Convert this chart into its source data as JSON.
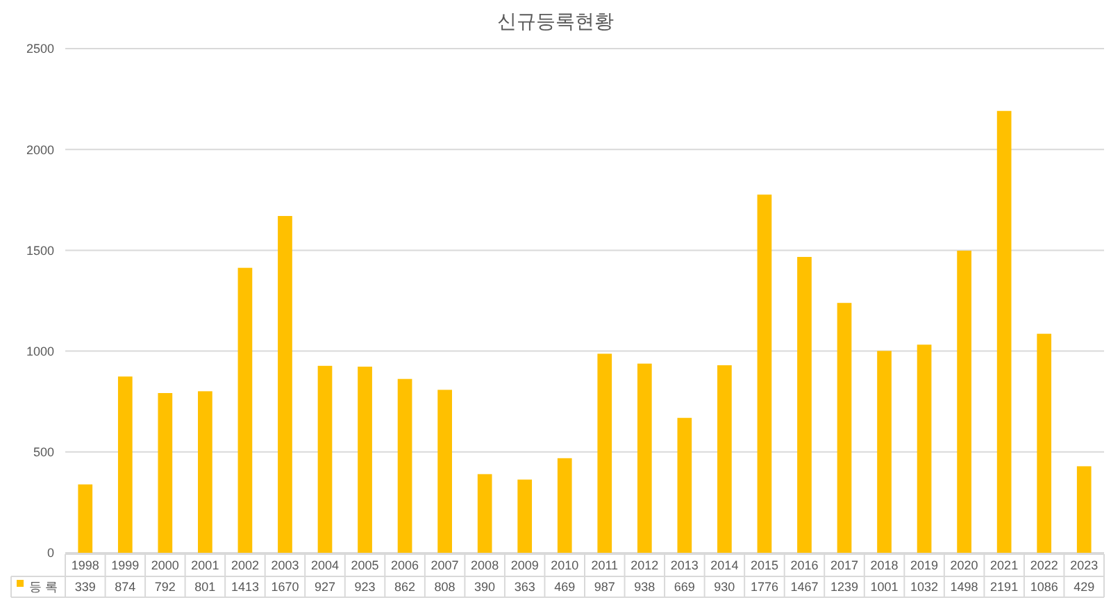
{
  "chart_data": {
    "type": "bar",
    "title": "신규등록현황",
    "categories": [
      "1998",
      "1999",
      "2000",
      "2001",
      "2002",
      "2003",
      "2004",
      "2005",
      "2006",
      "2007",
      "2008",
      "2009",
      "2010",
      "2011",
      "2012",
      "2013",
      "2014",
      "2015",
      "2016",
      "2017",
      "2018",
      "2019",
      "2020",
      "2021",
      "2022",
      "2023"
    ],
    "series": [
      {
        "name": "등 록",
        "color": "#ffc000",
        "values": [
          339,
          874,
          792,
          801,
          1413,
          1670,
          927,
          923,
          862,
          808,
          390,
          363,
          469,
          987,
          938,
          669,
          930,
          1776,
          1467,
          1239,
          1001,
          1032,
          1498,
          2191,
          1086,
          429
        ]
      }
    ],
    "ylim": [
      0,
      2500
    ],
    "yticks": [
      0,
      500,
      1000,
      1500,
      2000,
      2500
    ],
    "grid": "y",
    "legend": "bottom",
    "data_labels": true
  }
}
